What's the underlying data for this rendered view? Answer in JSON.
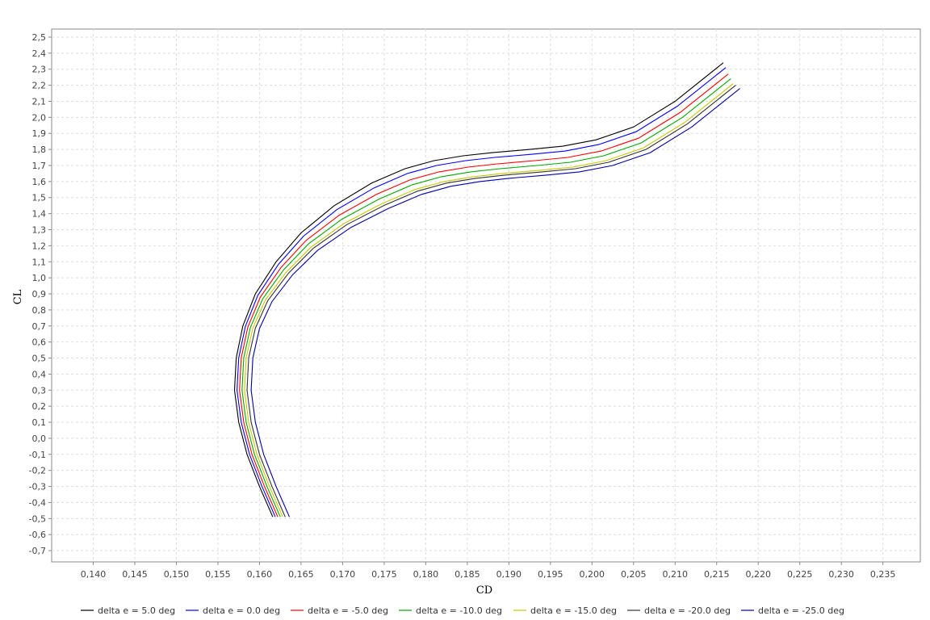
{
  "chart_data": {
    "type": "line",
    "title": "",
    "xlabel": "CD",
    "ylabel": "CL",
    "xlim": [
      0.135,
      0.2395
    ],
    "ylim": [
      -0.77,
      2.55
    ],
    "grid": true,
    "legend_position": "bottom",
    "x_ticks": [
      "0,140",
      "0,145",
      "0,150",
      "0,155",
      "0,160",
      "0,165",
      "0,170",
      "0,175",
      "0,180",
      "0,185",
      "0,190",
      "0,195",
      "0,200",
      "0,205",
      "0,210",
      "0,215",
      "0,220",
      "0,225",
      "0,230",
      "0,235"
    ],
    "y_ticks": [
      "2,5",
      "2,4",
      "2,3",
      "2,2",
      "2,1",
      "2,0",
      "1,9",
      "1,8",
      "1,7",
      "1,6",
      "1,5",
      "1,4",
      "1,3",
      "1,2",
      "1,1",
      "1,0",
      "0,9",
      "0,8",
      "0,7",
      "0,6",
      "0,5",
      "0,4",
      "0,3",
      "0,2",
      "0,1",
      "0,0",
      "-0,1",
      "-0,2",
      "-0,3",
      "-0,4",
      "-0,5",
      "-0,6",
      "-0,7"
    ],
    "base_curve": {
      "x": [
        0.1616,
        0.16,
        0.1585,
        0.1575,
        0.157,
        0.1572,
        0.158,
        0.1595,
        0.162,
        0.165,
        0.169,
        0.1735,
        0.1775,
        0.181,
        0.1845,
        0.188,
        0.1925,
        0.1965,
        0.2005,
        0.205,
        0.21,
        0.2158
      ],
      "y": [
        -0.49,
        -0.3,
        -0.1,
        0.1,
        0.3,
        0.5,
        0.7,
        0.9,
        1.1,
        1.28,
        1.45,
        1.59,
        1.68,
        1.73,
        1.76,
        1.78,
        1.8,
        1.82,
        1.86,
        1.94,
        2.1,
        2.34
      ]
    },
    "series": [
      {
        "name": "delta e = 5.0 deg",
        "color": "#000000",
        "dx": 0.0,
        "dy": 0.0
      },
      {
        "name": "delta e = 0.0 deg",
        "color": "#0000ff",
        "dx": 0.0003,
        "dy": -0.03
      },
      {
        "name": "delta e = -5.0 deg",
        "color": "#ff0000",
        "dx": 0.0006,
        "dy": -0.07
      },
      {
        "name": "delta e = -10.0 deg",
        "color": "#00aa00",
        "dx": 0.0009,
        "dy": -0.1
      },
      {
        "name": "delta e = -15.0 deg",
        "color": "#c8c800",
        "dx": 0.0012,
        "dy": -0.13
      },
      {
        "name": "delta e = -20.0 deg",
        "color": "#333333",
        "dx": 0.0015,
        "dy": -0.14
      },
      {
        "name": "delta e = -25.0 deg",
        "color": "#0000aa",
        "dx": 0.002,
        "dy": -0.16
      }
    ]
  }
}
